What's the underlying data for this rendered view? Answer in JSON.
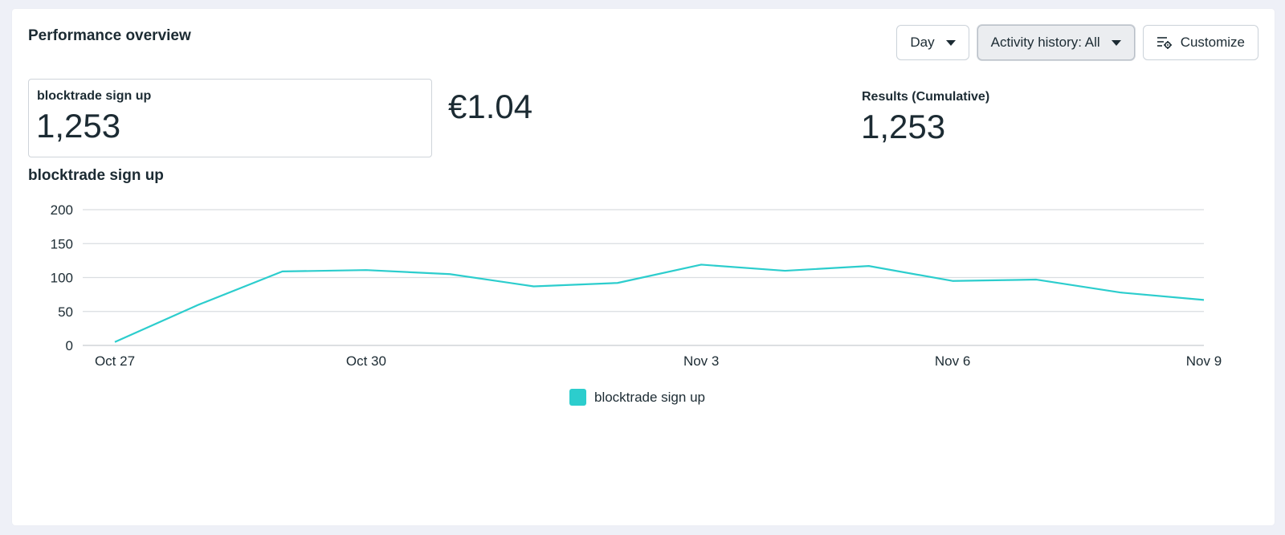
{
  "header": {
    "title": "Performance overview",
    "day_label": "Day",
    "activity_label": "Activity history: All",
    "customize_label": "Customize",
    "customize_icon": "settings-sliders-icon"
  },
  "metrics": {
    "primary_label": "blocktrade sign up",
    "primary_value": "1,253",
    "cost_value": "€1.04",
    "cumulative_label": "Results (Cumulative)",
    "cumulative_value": "1,253"
  },
  "chart_data": {
    "type": "line",
    "title": "blocktrade sign up",
    "x": [
      "Oct 27",
      "Oct 28",
      "Oct 29",
      "Oct 30",
      "Oct 31",
      "Nov 1",
      "Nov 2",
      "Nov 3",
      "Nov 4",
      "Nov 5",
      "Nov 6",
      "Nov 7",
      "Nov 8",
      "Nov 9"
    ],
    "x_tick_labels": [
      "Oct 27",
      "Oct 30",
      "Nov 3",
      "Nov 6",
      "Nov 9"
    ],
    "y_tick_labels": [
      "200",
      "150",
      "100",
      "50",
      "0"
    ],
    "ylim": [
      0,
      200
    ],
    "grid": true,
    "series": [
      {
        "name": "blocktrade sign up",
        "color": "#2ccdcd",
        "values": [
          5,
          60,
          109,
          111,
          105,
          87,
          92,
          119,
          110,
          117,
          95,
          97,
          78,
          67
        ]
      }
    ],
    "legend_position": "bottom-center"
  },
  "colors": {
    "series": "#2ccdcd",
    "grid": "#dadde1",
    "text": "#1c2b33"
  }
}
